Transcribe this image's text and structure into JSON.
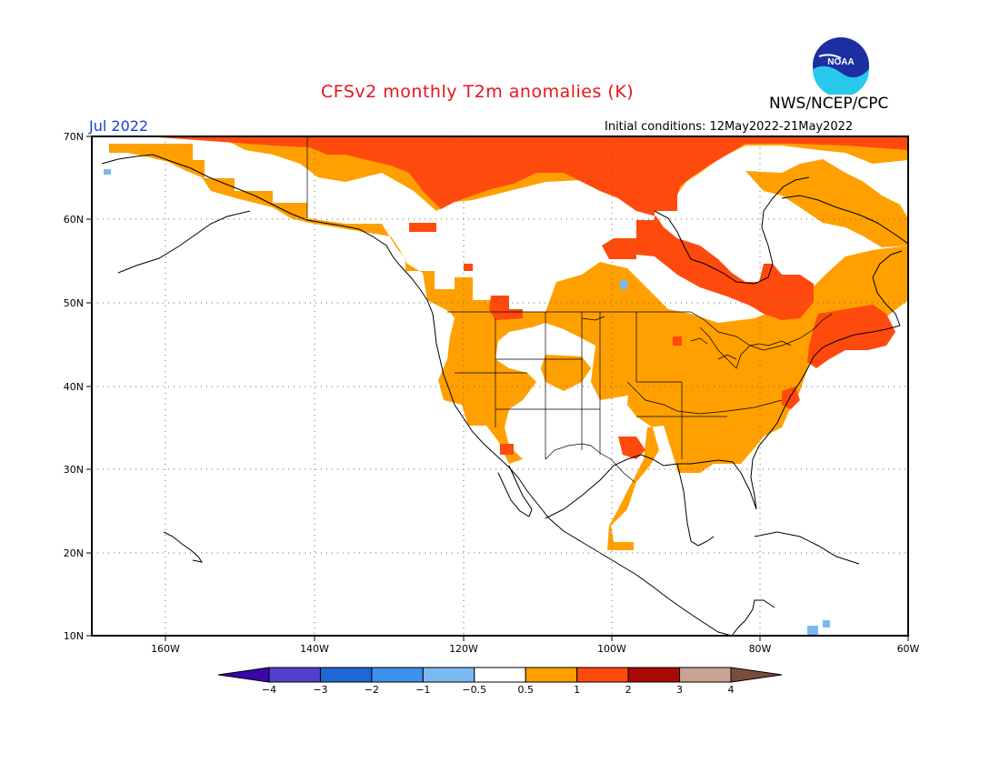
{
  "header": {
    "title": "CFSv2 monthly T2m anomalies (K)",
    "agency": "NWS/NCEP/CPC",
    "month": "Jul 2022",
    "initial_conditions": "Initial conditions: 12May2022-21May2022",
    "logo_text": "NOAA"
  },
  "map": {
    "lat_labels": [
      "70N",
      "60N",
      "50N",
      "40N",
      "30N",
      "20N",
      "10N"
    ],
    "lon_labels": [
      "160W",
      "140W",
      "120W",
      "100W",
      "80W",
      "60W"
    ]
  },
  "colorbar": {
    "tick_labels": [
      "-4",
      "-3",
      "-2",
      "-1",
      "-0.5",
      "0.5",
      "1",
      "2",
      "3",
      "4"
    ],
    "colors": [
      "#3a07a8",
      "#5140cc",
      "#1f66d6",
      "#3d90ec",
      "#7ab9f1",
      "#ffffff",
      "#ffa000",
      "#ff4a0d",
      "#a80a08",
      "#c9a493",
      "#7a4c3e"
    ]
  }
}
